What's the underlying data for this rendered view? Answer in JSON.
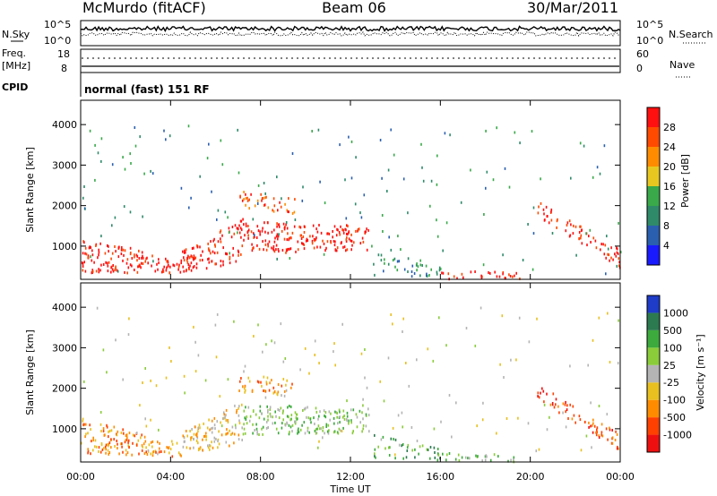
{
  "header": {
    "station": "McMurdo (fitACF)",
    "beam": "Beam 06",
    "date": "30/Mar/2011"
  },
  "noise_panel": {
    "left_label": "N.Sky",
    "right_label": "N.Search",
    "left_ticks": [
      "10^5",
      "10^0"
    ],
    "right_ticks": [
      "10^5",
      "10^0"
    ]
  },
  "freq_panel": {
    "left_label_1": "Freq.",
    "left_label_2": "[MHz]",
    "right_label": "Nave",
    "left_ticks": [
      "18",
      "8"
    ],
    "right_ticks": [
      "60",
      "0"
    ]
  },
  "cpid": {
    "label": "CPID",
    "value": "normal (fast) 151 RF"
  },
  "chart_data": [
    {
      "type": "heatmap",
      "quantity": "Power",
      "ylabel": "Slant Range [km]",
      "xlabel": "Time UT",
      "x_ticks": [
        "00:00",
        "04:00",
        "08:00",
        "12:00",
        "16:00",
        "20:00",
        "00:00"
      ],
      "x_range_hours": [
        0,
        24
      ],
      "ylim": [
        180,
        4600
      ],
      "y_ticks": [
        1000,
        2000,
        3000,
        4000
      ],
      "colorbar": {
        "label": "Power [dB]",
        "ticks": [
          "4",
          "8",
          "12",
          "16",
          "20",
          "24",
          "28"
        ],
        "colors": [
          "#1a1aff",
          "#2a5fb0",
          "#2f8a6a",
          "#39a94a",
          "#e8c820",
          "#ff8c00",
          "#ff4a00",
          "#ff1010"
        ]
      }
    },
    {
      "type": "heatmap",
      "quantity": "Velocity",
      "ylabel": "Slant Range [km]",
      "xlabel": "Time UT",
      "x_ticks": [
        "00:00",
        "04:00",
        "08:00",
        "12:00",
        "16:00",
        "20:00",
        "00:00"
      ],
      "x_range_hours": [
        0,
        24
      ],
      "ylim": [
        180,
        4600
      ],
      "y_ticks": [
        1000,
        2000,
        3000,
        4000
      ],
      "colorbar": {
        "label": "Velocity [m s⁻¹]",
        "ticks": [
          "1000",
          "500",
          "100",
          "25",
          "-25",
          "-100",
          "-500",
          "-1000"
        ],
        "colors": [
          "#1e3cc8",
          "#2c7a50",
          "#3caa3c",
          "#8acc3a",
          "#b4b4b4",
          "#e8c020",
          "#ff8c00",
          "#ff4000",
          "#ee1010"
        ]
      }
    }
  ]
}
